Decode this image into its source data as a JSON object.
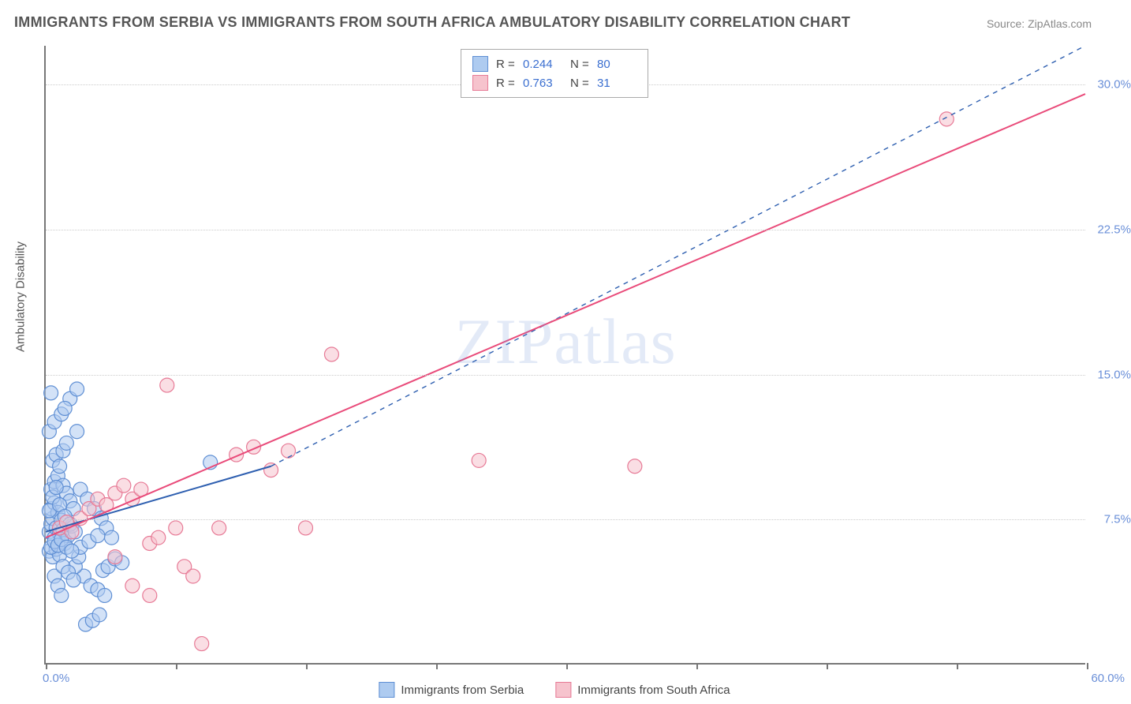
{
  "title": "IMMIGRANTS FROM SERBIA VS IMMIGRANTS FROM SOUTH AFRICA AMBULATORY DISABILITY CORRELATION CHART",
  "source": "Source: ZipAtlas.com",
  "y_axis_label": "Ambulatory Disability",
  "watermark": "ZIPatlas",
  "chart": {
    "type": "scatter-correlation",
    "background_color": "#ffffff",
    "grid_color": "#cccccc",
    "axis_color": "#777777",
    "text_color": "#555555",
    "tick_label_color": "#6a8fd8",
    "xlim": [
      0,
      60
    ],
    "ylim": [
      0,
      32
    ],
    "x_ticks": [
      0,
      7.5,
      15,
      22.5,
      30,
      37.5,
      45,
      52.5,
      60
    ],
    "y_gridlines": [
      7.5,
      15,
      22.5,
      30
    ],
    "y_tick_labels": [
      "7.5%",
      "15.0%",
      "22.5%",
      "30.0%"
    ],
    "x_origin_label": "0.0%",
    "x_max_label": "60.0%",
    "point_radius": 9,
    "series": [
      {
        "name": "Immigrants from Serbia",
        "color_fill": "#aecbf0",
        "color_stroke": "#5f8fd4",
        "fill_opacity": 0.55,
        "R": "0.244",
        "N": "80",
        "trend": {
          "x1": 0,
          "y1": 6.8,
          "x2": 13,
          "y2": 10.2,
          "dashed_x2": 60,
          "dashed_y2": 32,
          "color": "#2e5fb0",
          "width": 2
        },
        "points": [
          [
            0.2,
            6.8
          ],
          [
            0.3,
            7.2
          ],
          [
            0.5,
            6.5
          ],
          [
            0.4,
            7.5
          ],
          [
            0.6,
            7.0
          ],
          [
            0.8,
            6.7
          ],
          [
            0.3,
            8.0
          ],
          [
            0.5,
            8.3
          ],
          [
            0.7,
            7.8
          ],
          [
            0.9,
            7.4
          ],
          [
            1.0,
            6.9
          ],
          [
            0.2,
            5.8
          ],
          [
            0.4,
            5.5
          ],
          [
            0.6,
            5.9
          ],
          [
            0.8,
            5.6
          ],
          [
            1.1,
            6.2
          ],
          [
            1.3,
            6.6
          ],
          [
            1.5,
            7.1
          ],
          [
            0.3,
            9.0
          ],
          [
            0.5,
            9.4
          ],
          [
            0.7,
            9.7
          ],
          [
            1.0,
            9.2
          ],
          [
            1.2,
            8.8
          ],
          [
            1.4,
            8.4
          ],
          [
            1.6,
            8.0
          ],
          [
            0.4,
            10.5
          ],
          [
            0.6,
            10.8
          ],
          [
            0.8,
            10.2
          ],
          [
            1.0,
            11.0
          ],
          [
            1.2,
            11.4
          ],
          [
            0.2,
            12.0
          ],
          [
            0.5,
            12.5
          ],
          [
            0.9,
            12.9
          ],
          [
            1.4,
            13.7
          ],
          [
            1.1,
            13.2
          ],
          [
            0.3,
            14.0
          ],
          [
            1.8,
            14.2
          ],
          [
            2.0,
            9.0
          ],
          [
            2.4,
            8.5
          ],
          [
            2.8,
            8.0
          ],
          [
            3.2,
            7.5
          ],
          [
            3.5,
            7.0
          ],
          [
            3.8,
            6.5
          ],
          [
            3.3,
            4.8
          ],
          [
            3.6,
            5.0
          ],
          [
            4.0,
            5.4
          ],
          [
            4.4,
            5.2
          ],
          [
            2.2,
            4.5
          ],
          [
            2.6,
            4.0
          ],
          [
            3.0,
            3.8
          ],
          [
            3.4,
            3.5
          ],
          [
            2.3,
            2.0
          ],
          [
            2.7,
            2.2
          ],
          [
            3.1,
            2.5
          ],
          [
            1.7,
            5.0
          ],
          [
            1.9,
            5.5
          ],
          [
            0.5,
            4.5
          ],
          [
            0.7,
            4.0
          ],
          [
            0.9,
            3.5
          ],
          [
            1.8,
            12.0
          ],
          [
            9.5,
            10.4
          ],
          [
            2.0,
            6.0
          ],
          [
            2.5,
            6.3
          ],
          [
            3.0,
            6.6
          ],
          [
            1.0,
            5.0
          ],
          [
            1.3,
            4.7
          ],
          [
            1.6,
            4.3
          ],
          [
            0.2,
            7.9
          ],
          [
            0.4,
            8.6
          ],
          [
            0.6,
            9.1
          ],
          [
            0.8,
            8.2
          ],
          [
            1.1,
            7.6
          ],
          [
            1.4,
            7.2
          ],
          [
            1.7,
            6.8
          ],
          [
            0.3,
            6.0
          ],
          [
            0.5,
            6.3
          ],
          [
            0.7,
            6.1
          ],
          [
            0.9,
            6.4
          ],
          [
            1.2,
            6.0
          ],
          [
            1.5,
            5.8
          ]
        ]
      },
      {
        "name": "Immigrants from South Africa",
        "color_fill": "#f6c3cd",
        "color_stroke": "#e77a96",
        "fill_opacity": 0.55,
        "R": "0.763",
        "N": "31",
        "trend": {
          "x1": 0,
          "y1": 6.5,
          "x2": 60,
          "y2": 29.5,
          "color": "#e94b7a",
          "width": 2
        },
        "points": [
          [
            0.8,
            7.0
          ],
          [
            1.2,
            7.3
          ],
          [
            1.5,
            6.8
          ],
          [
            2.0,
            7.5
          ],
          [
            2.5,
            8.0
          ],
          [
            3.0,
            8.5
          ],
          [
            3.5,
            8.2
          ],
          [
            4.0,
            8.8
          ],
          [
            4.5,
            9.2
          ],
          [
            5.0,
            8.5
          ],
          [
            5.5,
            9.0
          ],
          [
            6.0,
            6.2
          ],
          [
            6.5,
            6.5
          ],
          [
            7.0,
            14.4
          ],
          [
            7.5,
            7.0
          ],
          [
            8.0,
            5.0
          ],
          [
            8.5,
            4.5
          ],
          [
            5.0,
            4.0
          ],
          [
            6.0,
            3.5
          ],
          [
            9.0,
            1.0
          ],
          [
            10.0,
            7.0
          ],
          [
            11.0,
            10.8
          ],
          [
            12.0,
            11.2
          ],
          [
            13.0,
            10.0
          ],
          [
            14.0,
            11.0
          ],
          [
            15.0,
            7.0
          ],
          [
            16.5,
            16.0
          ],
          [
            25.0,
            10.5
          ],
          [
            34.0,
            10.2
          ],
          [
            52.0,
            28.2
          ],
          [
            4.0,
            5.5
          ]
        ]
      }
    ]
  },
  "legend_top": {
    "rows": [
      {
        "swatch_fill": "#aecbf0",
        "swatch_stroke": "#5f8fd4",
        "R_label": "R =",
        "R_val": "0.244",
        "N_label": "N =",
        "N_val": "80"
      },
      {
        "swatch_fill": "#f6c3cd",
        "swatch_stroke": "#e77a96",
        "R_label": "R =",
        "R_val": "0.763",
        "N_label": "N =",
        "N_val": "31"
      }
    ]
  },
  "legend_bottom": {
    "items": [
      {
        "swatch_fill": "#aecbf0",
        "swatch_stroke": "#5f8fd4",
        "label": "Immigrants from Serbia"
      },
      {
        "swatch_fill": "#f6c3cd",
        "swatch_stroke": "#e77a96",
        "label": "Immigrants from South Africa"
      }
    ]
  }
}
